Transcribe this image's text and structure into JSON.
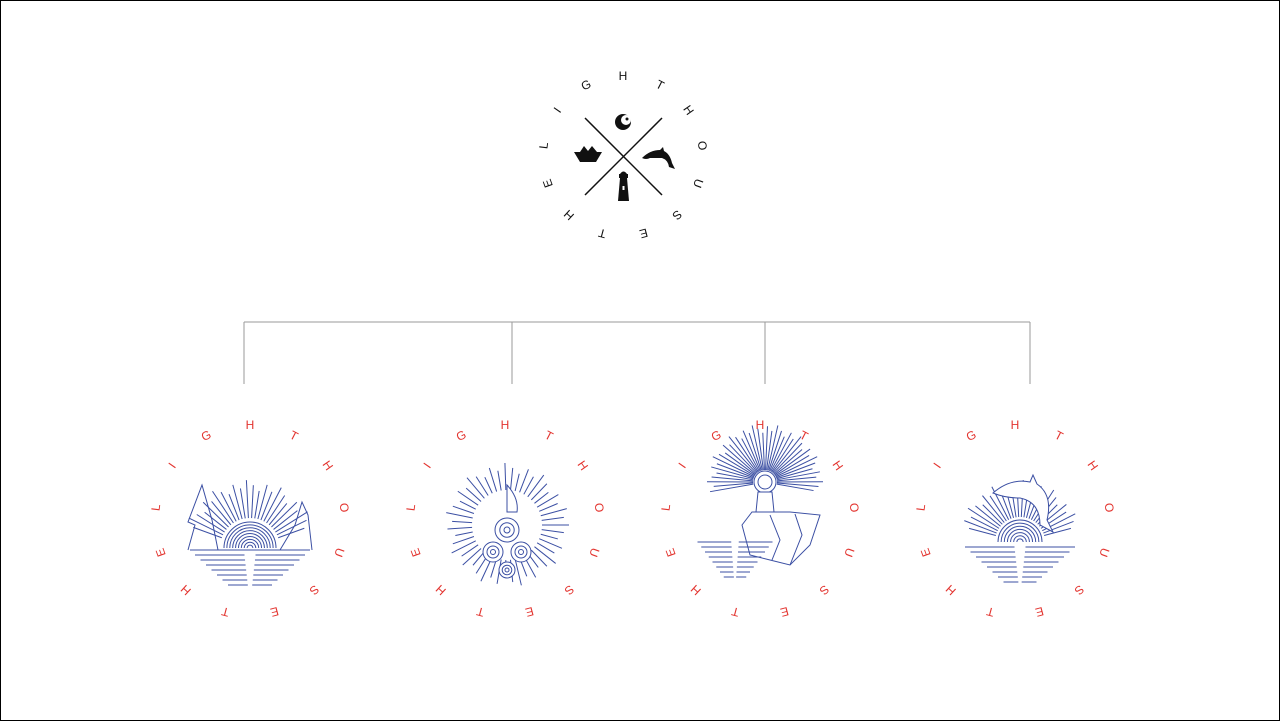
{
  "colors": {
    "line_art": "#3b4fa3",
    "ring_text_variant": "#e3342f",
    "ring_text_main": "#111111",
    "connector": "#9a9a9a"
  },
  "main_emblem": {
    "ring_text": "THELIGHTHOUSE",
    "icons": [
      "crescent-moon-icon",
      "paper-boat-icon",
      "dolphin-icon",
      "lighthouse-icon"
    ]
  },
  "variants": [
    {
      "ring_text": "THELIGHTHOUSE",
      "art": "sunset-cliffs-icon"
    },
    {
      "ring_text": "THELIGHTHOUSE",
      "art": "waves-sailboat-icon"
    },
    {
      "ring_text": "THELIGHTHOUSE",
      "art": "lighthouse-cliff-icon"
    },
    {
      "ring_text": "THELIGHTHOUSE",
      "art": "dolphin-sunset-icon"
    }
  ]
}
